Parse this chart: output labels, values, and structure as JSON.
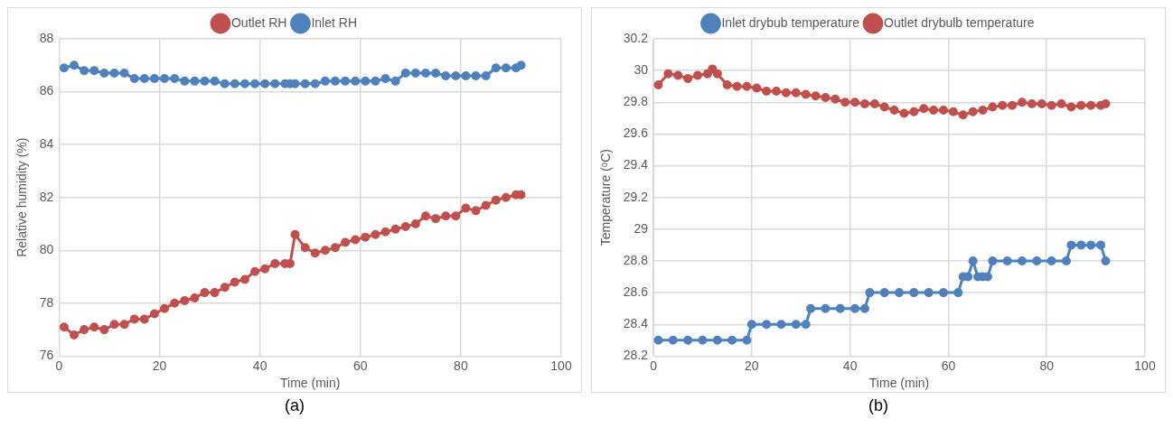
{
  "chart_data": [
    {
      "type": "line",
      "xlabel": "Time (min)",
      "ylabel": "Relative humidity (%)",
      "annotations": [
        "(a)"
      ],
      "legend": "top",
      "grid": true,
      "marker": "circle",
      "line_style": "solid",
      "xlim": [
        0,
        100
      ],
      "xticks": [
        0,
        20,
        40,
        60,
        80,
        100
      ],
      "ylim": [
        76,
        88
      ],
      "yticks": [
        76,
        78,
        80,
        82,
        84,
        86,
        88
      ],
      "x": [
        1,
        3,
        5,
        7,
        9,
        11,
        13,
        15,
        17,
        19,
        21,
        23,
        25,
        27,
        29,
        31,
        33,
        35,
        37,
        39,
        41,
        43,
        45,
        46,
        47,
        49,
        51,
        53,
        55,
        57,
        59,
        61,
        63,
        65,
        67,
        69,
        71,
        73,
        75,
        77,
        79,
        81,
        83,
        85,
        87,
        89,
        91,
        92
      ],
      "series": [
        {
          "name": "Outlet RH",
          "color": "#c0504d",
          "values": [
            77.1,
            76.8,
            77.0,
            77.1,
            77.0,
            77.2,
            77.2,
            77.4,
            77.4,
            77.6,
            77.8,
            78.0,
            78.1,
            78.2,
            78.4,
            78.4,
            78.6,
            78.8,
            78.9,
            79.2,
            79.3,
            79.5,
            79.5,
            79.5,
            80.6,
            80.1,
            79.9,
            80.0,
            80.1,
            80.3,
            80.4,
            80.5,
            80.6,
            80.7,
            80.8,
            80.9,
            81.0,
            81.3,
            81.2,
            81.3,
            81.3,
            81.6,
            81.5,
            81.7,
            81.9,
            82.0,
            82.1,
            82.1
          ]
        },
        {
          "name": "Inlet RH",
          "color": "#4f81bd",
          "values": [
            86.9,
            87.0,
            86.8,
            86.8,
            86.7,
            86.7,
            86.7,
            86.5,
            86.5,
            86.5,
            86.5,
            86.5,
            86.4,
            86.4,
            86.4,
            86.4,
            86.3,
            86.3,
            86.3,
            86.3,
            86.3,
            86.3,
            86.3,
            86.3,
            86.3,
            86.3,
            86.3,
            86.4,
            86.4,
            86.4,
            86.4,
            86.4,
            86.4,
            86.5,
            86.4,
            86.7,
            86.7,
            86.7,
            86.7,
            86.6,
            86.6,
            86.6,
            86.6,
            86.6,
            86.9,
            86.9,
            86.9,
            87.0
          ]
        }
      ]
    },
    {
      "type": "line",
      "xlabel": "Time (min)",
      "ylabel": "Temperature (ᵒC)",
      "annotations": [
        "(b)"
      ],
      "legend": "top",
      "grid": true,
      "marker": "circle",
      "line_style": "solid",
      "xlim": [
        0,
        100
      ],
      "xticks": [
        0,
        20,
        40,
        60,
        80,
        100
      ],
      "ylim": [
        28.2,
        30.2
      ],
      "yticks": [
        28.2,
        28.4,
        28.6,
        28.8,
        29,
        29.2,
        29.4,
        29.6,
        29.8,
        30,
        30.2
      ],
      "series": [
        {
          "name": "Inlet drybub temperature",
          "color": "#4f81bd",
          "x": [
            1,
            4,
            7,
            10,
            13,
            16,
            19,
            20,
            23,
            26,
            29,
            31,
            32,
            35,
            38,
            41,
            43,
            44,
            47,
            50,
            53,
            56,
            59,
            62,
            63,
            64,
            65,
            66,
            67,
            68,
            69,
            72,
            75,
            78,
            81,
            84,
            85,
            87,
            89,
            91,
            92
          ],
          "values": [
            28.3,
            28.3,
            28.3,
            28.3,
            28.3,
            28.3,
            28.3,
            28.4,
            28.4,
            28.4,
            28.4,
            28.4,
            28.5,
            28.5,
            28.5,
            28.5,
            28.5,
            28.6,
            28.6,
            28.6,
            28.6,
            28.6,
            28.6,
            28.6,
            28.7,
            28.7,
            28.8,
            28.7,
            28.7,
            28.7,
            28.8,
            28.8,
            28.8,
            28.8,
            28.8,
            28.8,
            28.9,
            28.9,
            28.9,
            28.9,
            28.8
          ]
        },
        {
          "name": "Outlet drybulb temperature",
          "color": "#c0504d",
          "x": [
            1,
            3,
            5,
            7,
            9,
            11,
            12,
            13,
            15,
            17,
            19,
            21,
            23,
            25,
            27,
            29,
            31,
            33,
            35,
            37,
            39,
            41,
            43,
            45,
            47,
            49,
            51,
            53,
            55,
            57,
            59,
            61,
            63,
            65,
            67,
            69,
            71,
            73,
            75,
            77,
            79,
            81,
            83,
            85,
            87,
            89,
            91,
            92
          ],
          "values": [
            29.91,
            29.98,
            29.97,
            29.95,
            29.97,
            29.98,
            30.01,
            29.98,
            29.91,
            29.9,
            29.9,
            29.89,
            29.87,
            29.87,
            29.86,
            29.86,
            29.85,
            29.84,
            29.83,
            29.82,
            29.8,
            29.8,
            29.79,
            29.79,
            29.77,
            29.75,
            29.73,
            29.74,
            29.76,
            29.75,
            29.75,
            29.74,
            29.72,
            29.74,
            29.75,
            29.77,
            29.78,
            29.78,
            29.8,
            29.79,
            29.79,
            29.78,
            29.79,
            29.77,
            29.78,
            29.78,
            29.78,
            29.79
          ]
        }
      ]
    }
  ]
}
